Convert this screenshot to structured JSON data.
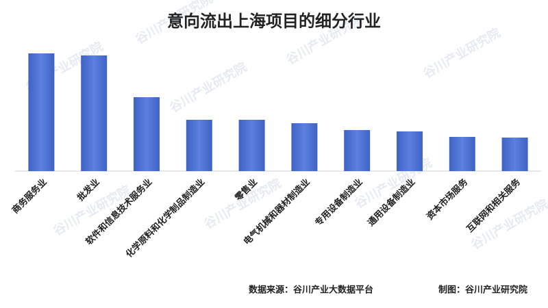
{
  "chart_data": {
    "type": "bar",
    "title": "意向流出上海项目的细分行业",
    "categories": [
      "商务服务业",
      "批发业",
      "软件和信息技术服务业",
      "化学原料和化学制品制造业",
      "零售业",
      "电气机械和器材制造业",
      "专用设备制造业",
      "通用设备制造业",
      "资本市场服务",
      "互联网和相关服务"
    ],
    "values": [
      172,
      169,
      108,
      75,
      75,
      70,
      60,
      58,
      50,
      49
    ],
    "color": "#4a6fd0",
    "source": "数据来源：谷川产业大数据平台",
    "credit": "制图：谷川产业研究院",
    "watermark": "谷川产业研究院"
  }
}
